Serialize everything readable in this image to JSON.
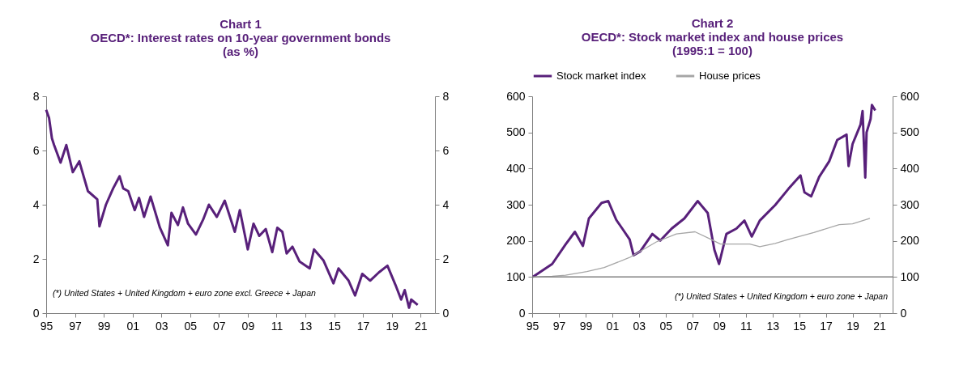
{
  "chart_data": [
    {
      "type": "line",
      "title": "Chart 1",
      "subtitle": "OECD*:  Interest rates on 10-year government bonds\n(as %)",
      "annotations": [
        "(*) United States + United Kingdom + euro zone excl. Greece + Japan"
      ],
      "xlim": [
        1995,
        2022
      ],
      "xticks": [
        {
          "value": 1995,
          "label": "95"
        },
        {
          "value": 1997,
          "label": "97"
        },
        {
          "value": 1999,
          "label": "99"
        },
        {
          "value": 2001,
          "label": "01"
        },
        {
          "value": 2003,
          "label": "03"
        },
        {
          "value": 2005,
          "label": "05"
        },
        {
          "value": 2007,
          "label": "07"
        },
        {
          "value": 2009,
          "label": "09"
        },
        {
          "value": 2011,
          "label": "11"
        },
        {
          "value": 2013,
          "label": "13"
        },
        {
          "value": 2015,
          "label": "15"
        },
        {
          "value": 2017,
          "label": "17"
        },
        {
          "value": 2019,
          "label": "19"
        },
        {
          "value": 2021,
          "label": "21"
        }
      ],
      "ylim": [
        0,
        8
      ],
      "yticks": [
        0,
        2,
        4,
        6,
        8
      ],
      "y2lim": [
        0,
        8
      ],
      "y2ticks": [
        0,
        2,
        4,
        6,
        8
      ],
      "grid": false,
      "legend": false,
      "series": [
        {
          "color": "#58207a",
          "x": [
            1995.0,
            1995.2,
            1995.4,
            1995.55,
            1996.0,
            1996.4,
            1996.85,
            1997.3,
            1997.9,
            1998.55,
            1998.7,
            1999.15,
            1999.65,
            2000.1,
            2000.35,
            2000.7,
            2001.15,
            2001.45,
            2001.8,
            2002.25,
            2002.9,
            2003.45,
            2003.7,
            2004.15,
            2004.5,
            2004.85,
            2005.4,
            2005.9,
            2006.3,
            2006.85,
            2007.4,
            2008.1,
            2008.45,
            2009.0,
            2009.4,
            2009.8,
            2010.25,
            2010.7,
            2011.05,
            2011.4,
            2011.7,
            2012.1,
            2012.6,
            2013.3,
            2013.6,
            2014.25,
            2014.95,
            2015.3,
            2016.0,
            2016.45,
            2016.95,
            2017.5,
            2018.1,
            2018.7,
            2019.25,
            2019.65,
            2019.9,
            2020.2,
            2020.35,
            2020.8
          ],
          "values": [
            7.5,
            7.2,
            6.45,
            6.2,
            5.55,
            6.2,
            5.2,
            5.6,
            4.5,
            4.2,
            3.2,
            4.0,
            4.6,
            5.05,
            4.6,
            4.5,
            3.8,
            4.25,
            3.55,
            4.3,
            3.15,
            2.5,
            3.7,
            3.25,
            3.9,
            3.3,
            2.9,
            3.45,
            4.0,
            3.55,
            4.15,
            3.0,
            3.8,
            2.35,
            3.3,
            2.85,
            3.1,
            2.25,
            3.15,
            3.0,
            2.2,
            2.45,
            1.9,
            1.65,
            2.35,
            1.95,
            1.1,
            1.65,
            1.2,
            0.65,
            1.45,
            1.2,
            1.5,
            1.75,
            1.05,
            0.5,
            0.85,
            0.2,
            0.5,
            0.3
          ]
        }
      ]
    },
    {
      "type": "line",
      "title": "Chart 2",
      "subtitle": "OECD*:  Stock market index and house prices\n(1995:1 = 100)",
      "annotations": [
        "(*) United States + United Kingdom + euro zone + Japan"
      ],
      "xlim": [
        1995,
        2022
      ],
      "xticks": [
        {
          "value": 1995,
          "label": "95"
        },
        {
          "value": 1997,
          "label": "97"
        },
        {
          "value": 1999,
          "label": "99"
        },
        {
          "value": 2001,
          "label": "01"
        },
        {
          "value": 2003,
          "label": "03"
        },
        {
          "value": 2005,
          "label": "05"
        },
        {
          "value": 2007,
          "label": "07"
        },
        {
          "value": 2009,
          "label": "09"
        },
        {
          "value": 2011,
          "label": "11"
        },
        {
          "value": 2013,
          "label": "13"
        },
        {
          "value": 2015,
          "label": "15"
        },
        {
          "value": 2017,
          "label": "17"
        },
        {
          "value": 2019,
          "label": "19"
        },
        {
          "value": 2021,
          "label": "21"
        }
      ],
      "ylim": [
        0,
        600
      ],
      "yticks": [
        0,
        100,
        200,
        300,
        400,
        500,
        600
      ],
      "y2lim": [
        0,
        600
      ],
      "y2ticks": [
        0,
        100,
        200,
        300,
        400,
        500,
        600
      ],
      "grid": false,
      "legend": "top",
      "ref_lines": [
        {
          "axis": "y",
          "value": 100,
          "color": "#808080"
        }
      ],
      "series": [
        {
          "name": "Stock market index",
          "color": "#58207a",
          "x": [
            1995.05,
            1996.5,
            1997.5,
            1998.2,
            1998.8,
            1999.25,
            2000.2,
            2000.7,
            2001.3,
            2001.75,
            2002.3,
            2002.6,
            2003.1,
            2004.0,
            2004.6,
            2005.45,
            2006.4,
            2007.4,
            2008.15,
            2008.65,
            2009.0,
            2009.55,
            2010.3,
            2010.9,
            2011.45,
            2012.05,
            2013.2,
            2014.2,
            2015.1,
            2015.4,
            2015.9,
            2016.5,
            2017.25,
            2017.85,
            2018.55,
            2018.7,
            2019.0,
            2019.6,
            2019.75,
            2019.95,
            2020.05,
            2020.35,
            2020.45,
            2020.7
          ],
          "values": [
            100,
            136,
            190,
            225,
            186,
            262,
            305,
            310,
            258,
            234,
            204,
            160,
            171,
            219,
            201,
            234,
            262,
            310,
            277,
            175,
            136,
            219,
            234,
            256,
            212,
            256,
            299,
            344,
            381,
            334,
            323,
            377,
            420,
            479,
            494,
            407,
            468,
            522,
            559,
            375,
            500,
            537,
            576,
            561
          ]
        },
        {
          "name": "House prices",
          "color": "#a6a6a6",
          "x": [
            1995.0,
            1996.5,
            1997.5,
            1999.1,
            2000.4,
            2002.3,
            2004.3,
            2005.8,
            2007.2,
            2008.4,
            2009.1,
            2011.3,
            2012.05,
            2013.2,
            2014.2,
            2016.1,
            2018.0,
            2019.0,
            2020.3
          ],
          "values": [
            100,
            102,
            105,
            115,
            126,
            154,
            197,
            219,
            225,
            204,
            191,
            191,
            184,
            193,
            204,
            223,
            245,
            247,
            262
          ]
        }
      ]
    }
  ]
}
